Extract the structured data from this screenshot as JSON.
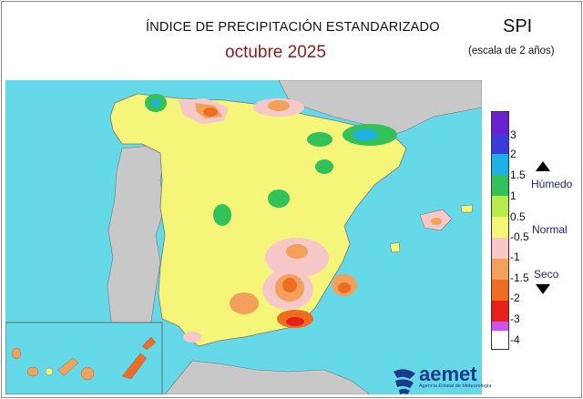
{
  "header": {
    "title": "ÍNDICE DE PRECIPITACIÓN ESTANDARIZADO",
    "subtitle": "octubre  2025",
    "index_name": "SPI",
    "scale_note": "(escala de 2 años)"
  },
  "legend": {
    "ticks": [
      "3",
      "2",
      "1.5",
      "1",
      "0.5",
      "-0.5",
      "-1",
      "-1.5",
      "-2",
      "-3",
      "-4"
    ],
    "words": {
      "wet": "Húmedo",
      "normal": "Normal",
      "dry": "Seco"
    },
    "colors": {
      "gt3": "#6a1fd0",
      "2to3": "#3b3bdc",
      "1.5to2": "#1fb0e8",
      "1to1.5": "#33c15a",
      "0.5to1": "#b8ec4a",
      "n05to05": "#f5f57a",
      "n1ton05": "#f6c8c8",
      "n15ton1": "#f2a05a",
      "n2ton15": "#ef6d22",
      "n3ton2": "#e8201a",
      "lt_n4": "#d050f0"
    }
  },
  "map": {
    "sea_color": "#66d9e8",
    "neighbor_land_color": "#c8c8c8",
    "spain_base_color": "#f5f57a"
  },
  "logo": {
    "name": "aemet",
    "tagline": "Agencia Estatal de Meteorología"
  }
}
